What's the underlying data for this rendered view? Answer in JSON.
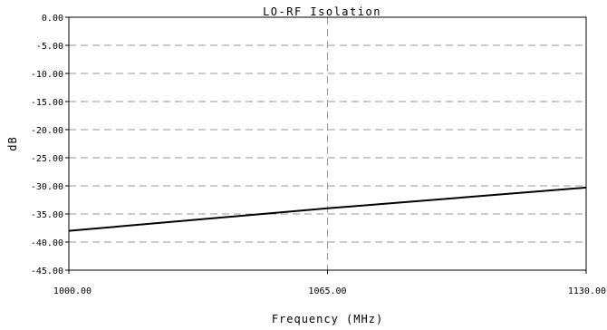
{
  "chart_data": {
    "type": "line",
    "title": "LO-RF Isolation",
    "xlabel": "Frequency (MHz)",
    "ylabel": "dB",
    "xlim": [
      1000,
      1130
    ],
    "ylim": [
      -45,
      0
    ],
    "x_ticks": [
      "1000.00",
      "1065.00",
      "1130.00"
    ],
    "x_tick_values": [
      1000,
      1065,
      1130
    ],
    "y_ticks": [
      "0.00",
      "-5.00",
      "-10.00",
      "-15.00",
      "-20.00",
      "-25.00",
      "-30.00",
      "-35.00",
      "-40.00",
      "-45.00"
    ],
    "y_tick_values": [
      0,
      -5,
      -10,
      -15,
      -20,
      -25,
      -30,
      -35,
      -40,
      -45
    ],
    "grid": true,
    "legend": "none",
    "series": [
      {
        "x": [
          1000,
          1065,
          1130
        ],
        "values": [
          -38.0,
          -34.0,
          -30.3
        ],
        "color": "#000000"
      }
    ]
  }
}
